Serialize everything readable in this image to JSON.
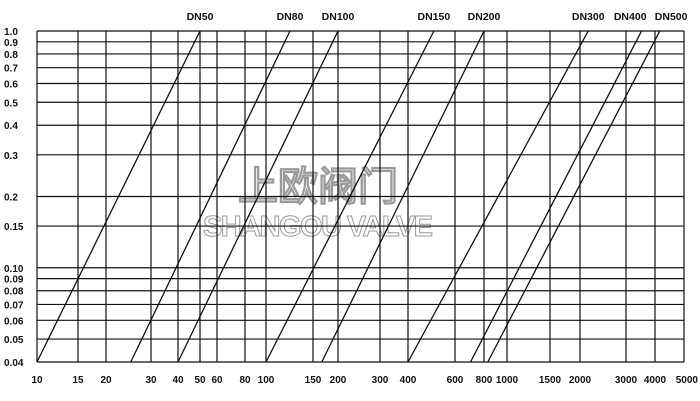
{
  "chart_data": {
    "type": "line",
    "title": "",
    "xlabel": "",
    "ylabel": "",
    "x_scale": "log",
    "y_scale": "log",
    "xlim": [
      10,
      5000
    ],
    "ylim": [
      0.04,
      1.0
    ],
    "grid": true,
    "x_ticks": [
      10,
      15,
      20,
      30,
      40,
      50,
      60,
      80,
      100,
      150,
      200,
      300,
      400,
      600,
      800,
      1000,
      1500,
      2000,
      3000,
      4000,
      5000
    ],
    "x_tick_labels": [
      "10",
      "15",
      "20",
      "30",
      "40",
      "50",
      "60",
      "80",
      "100",
      "150",
      "200",
      "300",
      "400",
      "600",
      "800",
      "1000",
      "1500",
      "2000",
      "3000",
      "4000",
      "5000"
    ],
    "y_ticks": [
      1.0,
      0.9,
      0.8,
      0.7,
      0.6,
      0.5,
      0.4,
      0.3,
      0.2,
      0.15,
      0.1,
      0.09,
      0.08,
      0.07,
      0.06,
      0.05,
      0.04
    ],
    "y_tick_labels": [
      "1.0",
      "0.9",
      "0.8",
      "0.7",
      "0.6",
      "0.5",
      "0.4",
      "0.3",
      "0.2",
      "0.15",
      "0.10",
      "0.09",
      "0.08",
      "0.07",
      "0.06",
      "0.05",
      "0.04"
    ],
    "series": [
      {
        "name": "DN50",
        "x": [
          10,
          50
        ],
        "y": [
          0.04,
          1.0
        ]
      },
      {
        "name": "DN80",
        "x": [
          25,
          123
        ],
        "y": [
          0.04,
          1.0
        ]
      },
      {
        "name": "DN100",
        "x": [
          40,
          200
        ],
        "y": [
          0.04,
          1.0
        ]
      },
      {
        "name": "DN150",
        "x": [
          100,
          500
        ],
        "y": [
          0.04,
          1.0
        ]
      },
      {
        "name": "DN200",
        "x": [
          166,
          800
        ],
        "y": [
          0.04,
          1.0
        ]
      },
      {
        "name": "DN300",
        "x": [
          400,
          2150
        ],
        "y": [
          0.04,
          1.0
        ]
      },
      {
        "name": "DN400",
        "x": [
          700,
          3500
        ],
        "y": [
          0.04,
          1.0
        ]
      },
      {
        "name": "DN500",
        "x": [
          830,
          4150
        ],
        "y": [
          0.04,
          1.0
        ]
      }
    ],
    "line_color": "#111111"
  },
  "watermark": {
    "cn": "上欧阀门",
    "en": "SHANGOU VALVE"
  }
}
